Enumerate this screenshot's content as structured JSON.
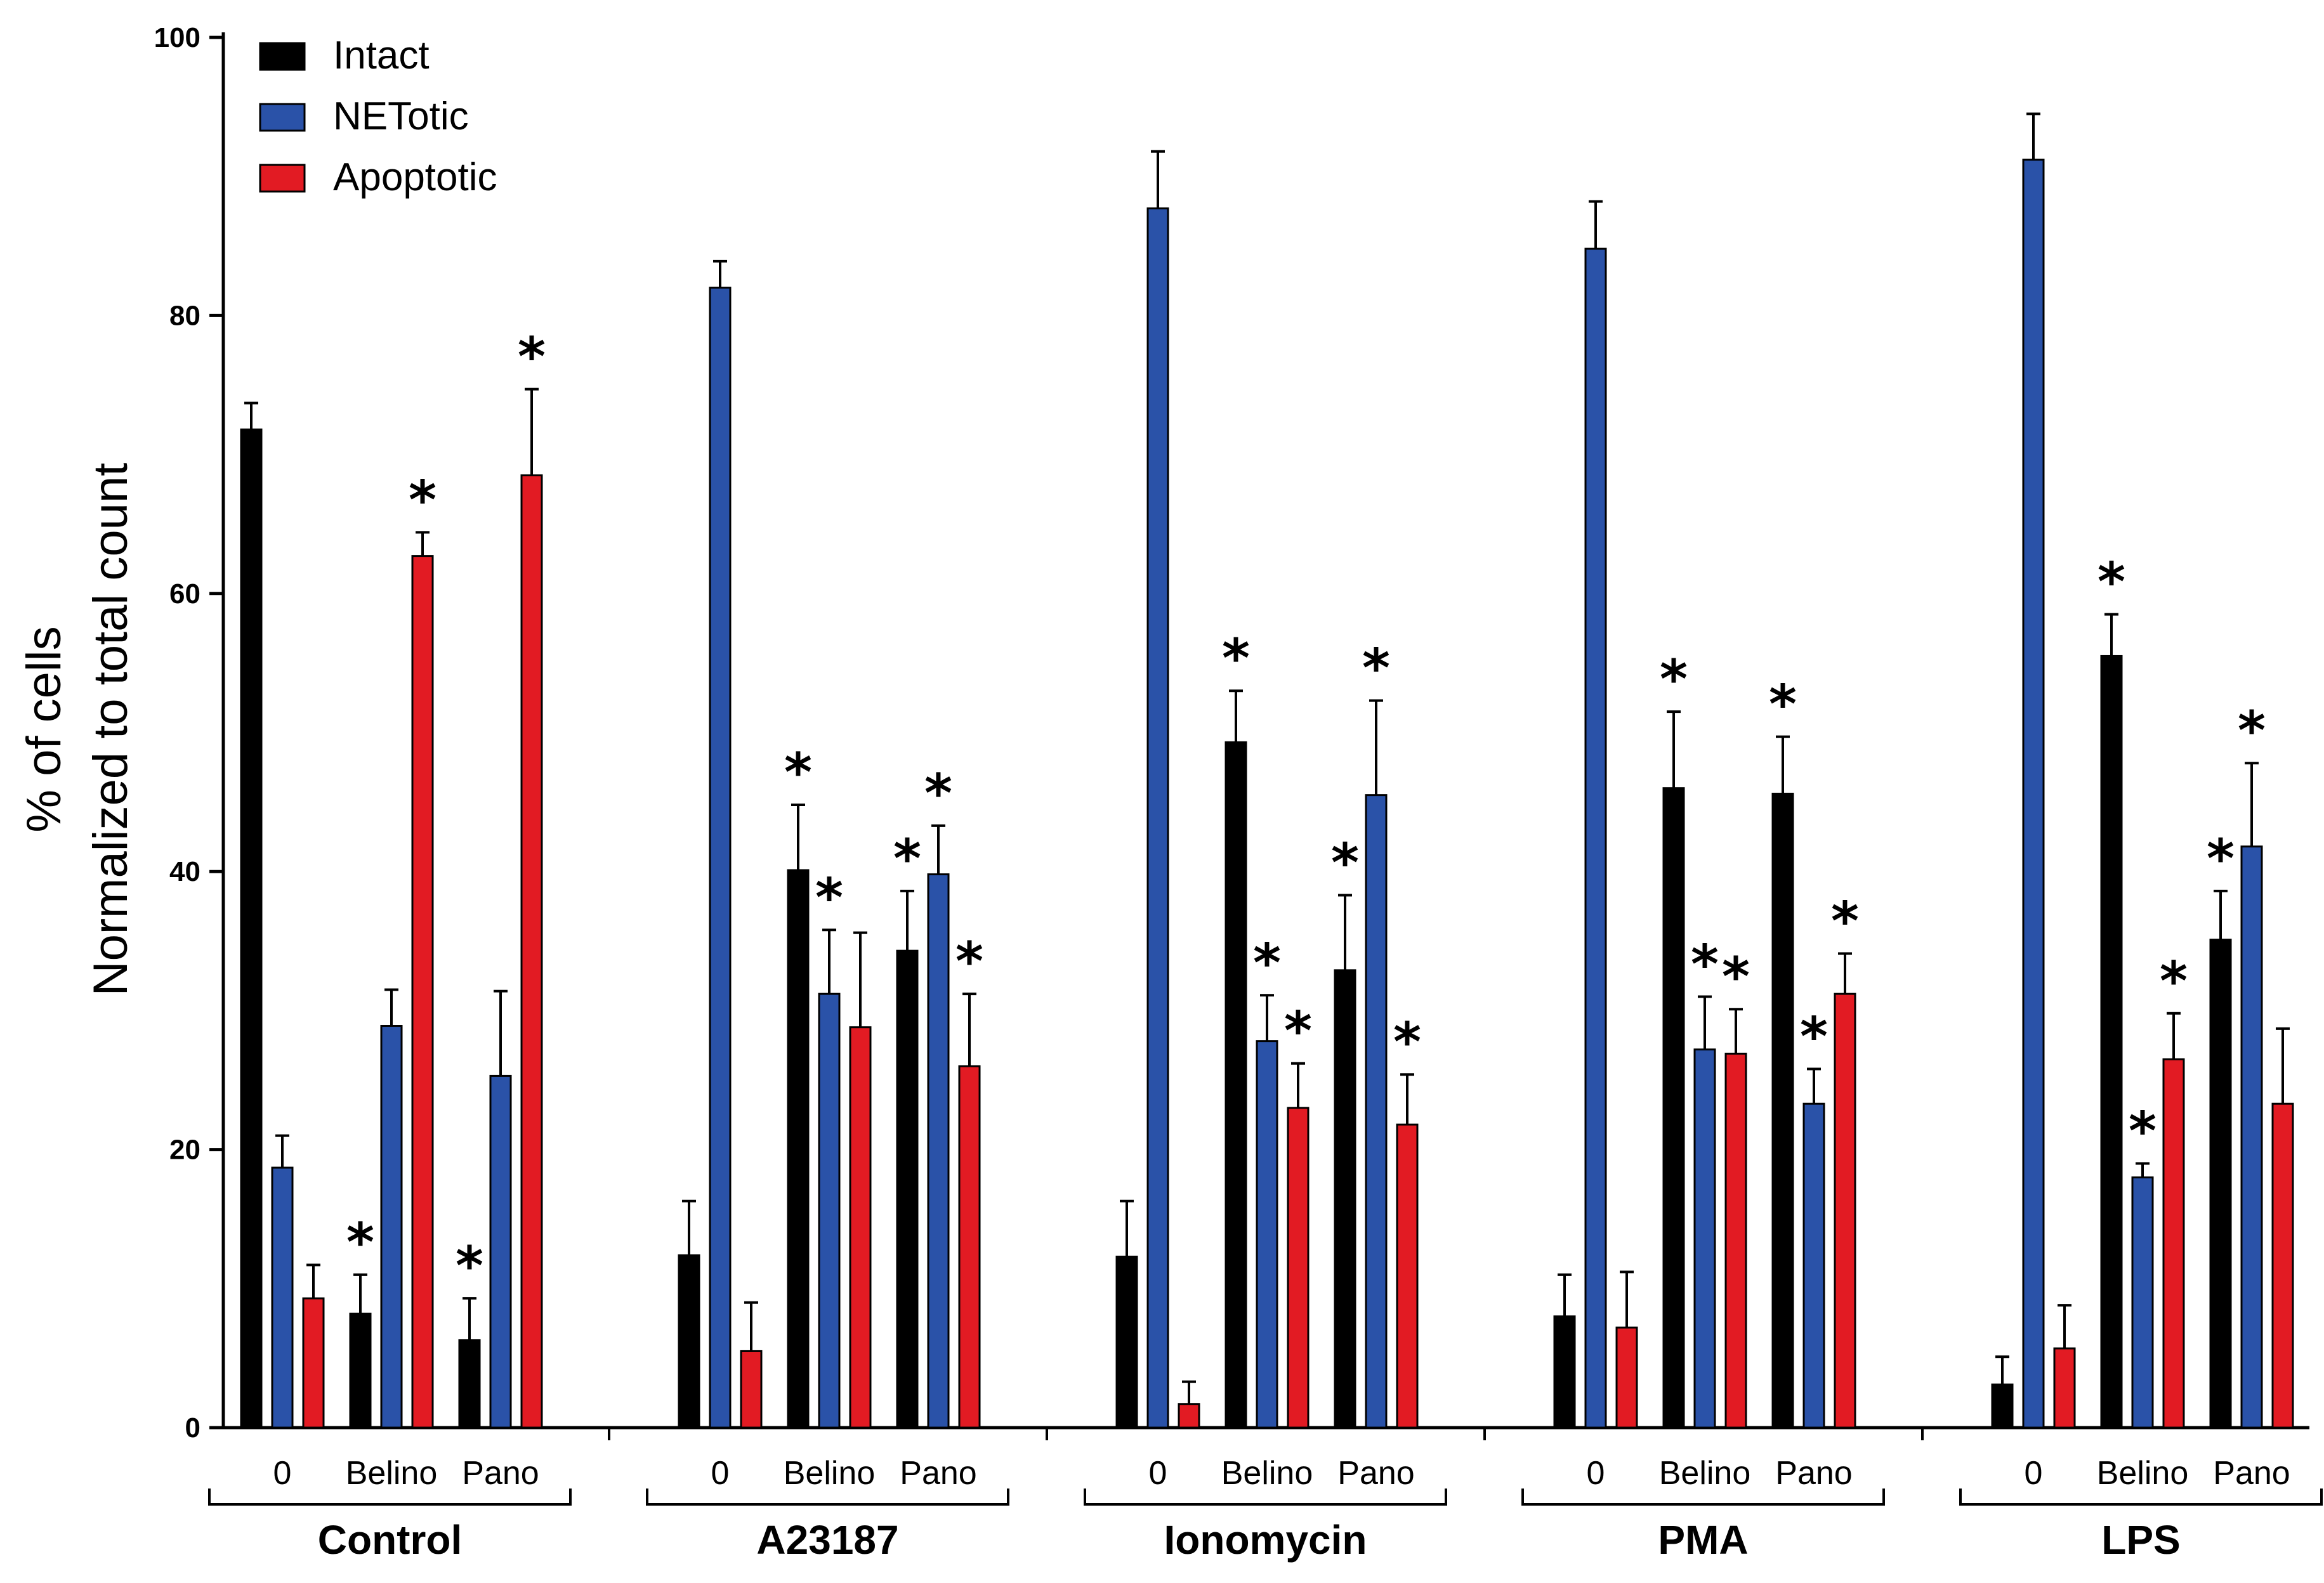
{
  "chart_data": {
    "type": "bar",
    "title": "",
    "xlabel": "",
    "ylabel": [
      "% of cells",
      "Normalized to total count"
    ],
    "ylim": [
      0,
      100
    ],
    "yticks": [
      0,
      20,
      40,
      60,
      80,
      100
    ],
    "legend_position": "top-left",
    "colors": {
      "Intact": "#000000",
      "NETotic": "#2a52a8",
      "Apoptotic": "#e21b23"
    },
    "series_names": [
      "Intact",
      "NETotic",
      "Apoptotic"
    ],
    "groups": [
      {
        "label": "Control",
        "categories": [
          "0",
          "Belino",
          "Pano"
        ],
        "series": [
          {
            "name": "Intact",
            "values": [
              71.8,
              8.2,
              6.3
            ],
            "errors": [
              1.9,
              2.8,
              3.0
            ],
            "sig": [
              false,
              true,
              true
            ]
          },
          {
            "name": "NETotic",
            "values": [
              18.7,
              28.9,
              25.3
            ],
            "errors": [
              2.3,
              2.6,
              6.1
            ],
            "sig": [
              false,
              false,
              false
            ]
          },
          {
            "name": "Apoptotic",
            "values": [
              9.3,
              62.7,
              68.5
            ],
            "errors": [
              2.4,
              1.7,
              6.2
            ],
            "sig": [
              false,
              true,
              true
            ]
          }
        ]
      },
      {
        "label": "A23187",
        "categories": [
          "0",
          "Belino",
          "Pano"
        ],
        "series": [
          {
            "name": "Intact",
            "values": [
              12.4,
              40.1,
              34.3
            ],
            "errors": [
              3.9,
              4.7,
              4.3
            ],
            "sig": [
              false,
              true,
              true
            ]
          },
          {
            "name": "NETotic",
            "values": [
              82.0,
              31.2,
              39.8
            ],
            "errors": [
              1.9,
              4.6,
              3.5
            ],
            "sig": [
              false,
              true,
              true
            ]
          },
          {
            "name": "Apoptotic",
            "values": [
              5.5,
              28.8,
              26.0
            ],
            "errors": [
              3.5,
              6.8,
              5.2
            ],
            "sig": [
              false,
              false,
              true
            ]
          }
        ]
      },
      {
        "label": "Ionomycin",
        "categories": [
          "0",
          "Belino",
          "Pano"
        ],
        "series": [
          {
            "name": "Intact",
            "values": [
              12.3,
              49.3,
              32.9
            ],
            "errors": [
              4.0,
              3.7,
              5.4
            ],
            "sig": [
              false,
              true,
              true
            ]
          },
          {
            "name": "NETotic",
            "values": [
              87.7,
              27.8,
              45.5
            ],
            "errors": [
              4.1,
              3.3,
              6.8
            ],
            "sig": [
              false,
              true,
              true
            ]
          },
          {
            "name": "Apoptotic",
            "values": [
              1.7,
              23.0,
              21.8
            ],
            "errors": [
              1.6,
              3.2,
              3.6
            ],
            "sig": [
              false,
              true,
              true
            ]
          }
        ]
      },
      {
        "label": "PMA",
        "categories": [
          "0",
          "Belino",
          "Pano"
        ],
        "series": [
          {
            "name": "Intact",
            "values": [
              8.0,
              46.0,
              45.6
            ],
            "errors": [
              3.0,
              5.5,
              4.1
            ],
            "sig": [
              false,
              true,
              true
            ]
          },
          {
            "name": "NETotic",
            "values": [
              84.8,
              27.2,
              23.3
            ],
            "errors": [
              3.4,
              3.8,
              2.5
            ],
            "sig": [
              false,
              true,
              true
            ]
          },
          {
            "name": "Apoptotic",
            "values": [
              7.2,
              26.9,
              31.2
            ],
            "errors": [
              4.0,
              3.2,
              2.9
            ],
            "sig": [
              false,
              true,
              true
            ]
          }
        ]
      },
      {
        "label": "LPS",
        "categories": [
          "0",
          "Belino",
          "Pano"
        ],
        "series": [
          {
            "name": "Intact",
            "values": [
              3.1,
              55.5,
              35.1
            ],
            "errors": [
              2.0,
              3.0,
              3.5
            ],
            "sig": [
              false,
              true,
              true
            ]
          },
          {
            "name": "NETotic",
            "values": [
              91.2,
              18.0,
              41.8
            ],
            "errors": [
              3.3,
              1.0,
              6.0
            ],
            "sig": [
              false,
              true,
              true
            ]
          },
          {
            "name": "Apoptotic",
            "values": [
              5.7,
              26.5,
              23.3
            ],
            "errors": [
              3.1,
              3.3,
              5.4
            ],
            "sig": [
              false,
              true,
              false
            ]
          }
        ]
      }
    ],
    "significance_marker": "*"
  }
}
